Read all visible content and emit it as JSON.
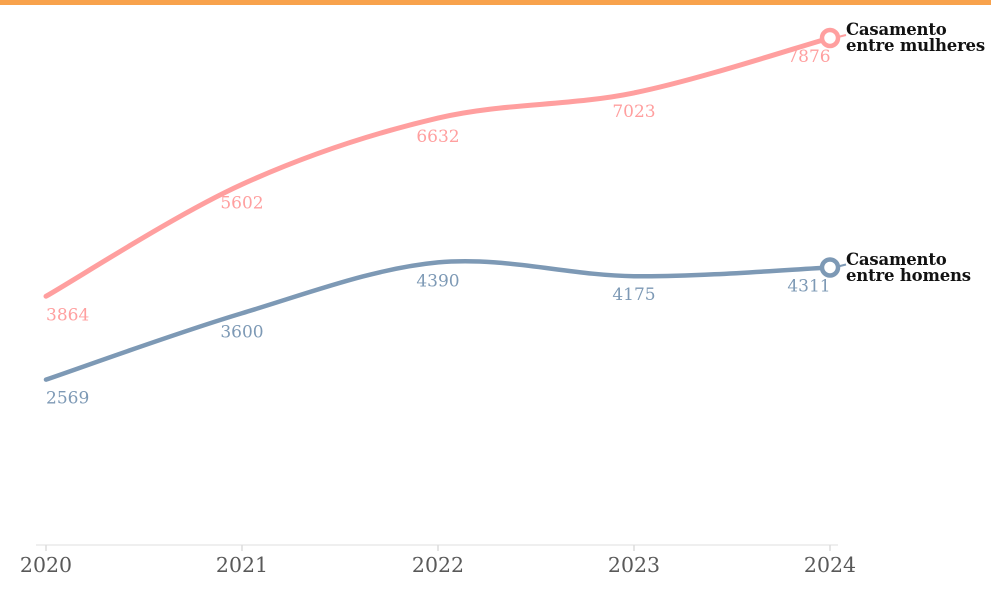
{
  "accent_bar_color": "#f8a24c",
  "chart_data": {
    "type": "line",
    "x": [
      "2020",
      "2021",
      "2022",
      "2023",
      "2024"
    ],
    "series": [
      {
        "name": "Casamento entre mulheres",
        "label_lines": [
          "Casamento",
          "entre mulheres"
        ],
        "values": [
          3864,
          5602,
          6632,
          7023,
          7876
        ],
        "color": "#ff9f9f"
      },
      {
        "name": "Casamento entre homens",
        "label_lines": [
          "Casamento",
          "entre homens"
        ],
        "values": [
          2569,
          3600,
          4390,
          4175,
          4311
        ],
        "color": "#7d99b5"
      }
    ],
    "title": "",
    "xlabel": "",
    "ylabel": "",
    "ylim": [
      0,
      8000
    ],
    "grid": false,
    "legend_position": "right-of-line-end",
    "axis_line_color": "#eaeaea",
    "tick_color": "#dcdcdc",
    "tick_label_color": "#595959"
  }
}
